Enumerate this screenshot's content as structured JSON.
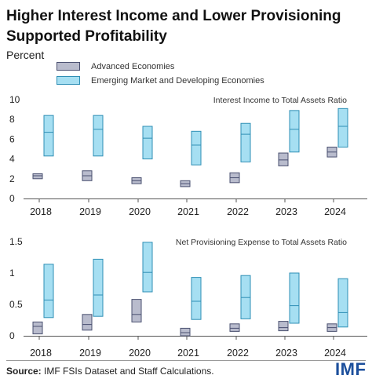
{
  "title": "Higher Interest Income and Lower Provisioning Supported Profitability",
  "unit_label": "Percent",
  "legend": {
    "advanced": "Advanced Economies",
    "emerging": "Emerging Market and Developing Economies"
  },
  "colors": {
    "advanced_fill": "#b9bccd",
    "advanced_stroke": "#4a5070",
    "emerging_fill": "#a6dff2",
    "emerging_stroke": "#2f8fb5"
  },
  "source_label": "Source:",
  "source_text": "IMF FSIs Dataset and Staff Calculations.",
  "logo": "IMF",
  "chart_data": [
    {
      "type": "range-bar",
      "title": "Interest Income to Total Assets Ratio",
      "categories": [
        "2018",
        "2019",
        "2020",
        "2021",
        "2022",
        "2023",
        "2024"
      ],
      "ylim": [
        0,
        10
      ],
      "yticks": [
        "0",
        "2",
        "4",
        "6",
        "8",
        "10"
      ],
      "ytick_values": [
        0,
        2,
        4,
        6,
        8,
        10
      ],
      "series": [
        {
          "name": "Advanced Economies",
          "low": [
            2.0,
            1.8,
            1.5,
            1.2,
            1.6,
            3.3,
            4.2
          ],
          "median": [
            2.3,
            2.3,
            1.8,
            1.5,
            2.1,
            3.9,
            4.7
          ],
          "high": [
            2.5,
            2.8,
            2.1,
            1.8,
            2.6,
            4.6,
            5.2
          ]
        },
        {
          "name": "Emerging Market and Developing Economies",
          "low": [
            4.3,
            4.3,
            4.0,
            3.4,
            3.7,
            4.7,
            5.2
          ],
          "median": [
            6.7,
            7.0,
            6.1,
            5.4,
            6.5,
            7.0,
            7.3
          ],
          "high": [
            8.4,
            8.4,
            7.3,
            6.8,
            7.6,
            8.9,
            9.1
          ]
        }
      ]
    },
    {
      "type": "range-bar",
      "title": "Net Provisioning Expense to Total Assets Ratio",
      "categories": [
        "2018",
        "2019",
        "2020",
        "2021",
        "2022",
        "2023",
        "2024"
      ],
      "ylim": [
        0,
        1.5
      ],
      "yticks": [
        "0",
        "0.5",
        "1",
        "1.5"
      ],
      "ytick_values": [
        0,
        0.5,
        1,
        1.5
      ],
      "series": [
        {
          "name": "Advanced Economies",
          "low": [
            0.03,
            0.09,
            0.22,
            0.0,
            0.07,
            0.08,
            0.07
          ],
          "median": [
            0.15,
            0.18,
            0.34,
            0.05,
            0.12,
            0.13,
            0.13
          ],
          "high": [
            0.22,
            0.34,
            0.58,
            0.12,
            0.19,
            0.23,
            0.19
          ]
        },
        {
          "name": "Emerging Market and Developing Economies",
          "low": [
            0.29,
            0.31,
            0.7,
            0.26,
            0.27,
            0.2,
            0.14
          ],
          "median": [
            0.57,
            0.65,
            1.01,
            0.55,
            0.61,
            0.48,
            0.37
          ],
          "high": [
            1.14,
            1.22,
            1.49,
            0.93,
            0.96,
            1.0,
            0.91
          ]
        }
      ]
    }
  ]
}
